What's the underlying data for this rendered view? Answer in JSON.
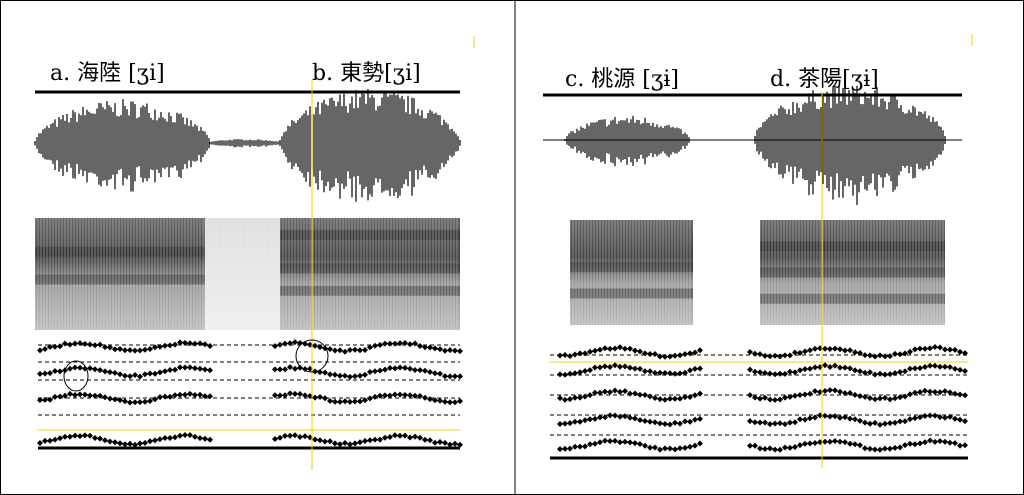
{
  "panels": [
    {
      "labels": [
        "a. 海陸 [ʒi]",
        "b. 東勢[ʒi]"
      ]
    },
    {
      "labels": [
        "c. 桃源 [ʒɨ]",
        "d. 茶陽[ʒɨ]"
      ]
    }
  ]
}
